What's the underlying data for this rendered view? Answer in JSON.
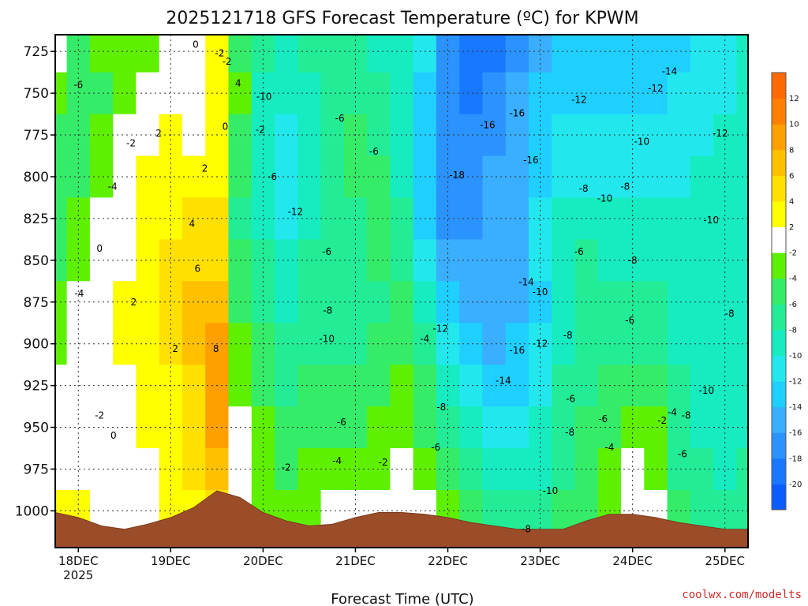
{
  "chart_data": {
    "type": "heatmap",
    "title": "2025121718 GFS Forecast Temperature (ºC) for KPWM",
    "xlabel": "Forecast Time (UTC)",
    "ylabel": "",
    "credit": "coolwx.com/modelts",
    "xlim_days": [
      0,
      7.5
    ],
    "ylim_hpa": [
      1022,
      715
    ],
    "x_ticks": [
      {
        "label": "18DEC",
        "sub": "2025",
        "day": 0.25
      },
      {
        "label": "19DEC",
        "sub": "",
        "day": 1.25
      },
      {
        "label": "20DEC",
        "sub": "",
        "day": 2.25
      },
      {
        "label": "21DEC",
        "sub": "",
        "day": 3.25
      },
      {
        "label": "22DEC",
        "sub": "",
        "day": 4.25
      },
      {
        "label": "23DEC",
        "sub": "",
        "day": 5.25
      },
      {
        "label": "24DEC",
        "sub": "",
        "day": 6.25
      },
      {
        "label": "25DEC",
        "sub": "",
        "day": 7.25
      }
    ],
    "y_ticks": [
      {
        "label": "725",
        "p": 725
      },
      {
        "label": "750",
        "p": 750
      },
      {
        "label": "775",
        "p": 775
      },
      {
        "label": "800",
        "p": 800
      },
      {
        "label": "825",
        "p": 825
      },
      {
        "label": "850",
        "p": 850
      },
      {
        "label": "875",
        "p": 875
      },
      {
        "label": "900",
        "p": 900
      },
      {
        "label": "925",
        "p": 925
      },
      {
        "label": "950",
        "p": 950
      },
      {
        "label": "975",
        "p": 975
      },
      {
        "label": "1000",
        "p": 1000
      }
    ],
    "colorbar": {
      "bounds": [
        -22,
        -20,
        -18,
        -16,
        -14,
        -12,
        -10,
        -8,
        -6,
        -4,
        -2,
        2,
        4,
        6,
        8,
        10,
        12,
        14
      ],
      "colors": [
        "#0a5cff",
        "#1878ff",
        "#2a93ff",
        "#3aaeff",
        "#1fcfff",
        "#22e8ee",
        "#16ecc0",
        "#22ec95",
        "#35ec68",
        "#5ef000",
        "#ffffff",
        "#ffff00",
        "#ffe000",
        "#ffc000",
        "#ffa000",
        "#ff8000",
        "#ff6a00"
      ],
      "tick_labels": [
        "-20",
        "-18",
        "-16",
        "-14",
        "-12",
        "-10",
        "-8",
        "-6",
        "-4",
        "-2",
        "2",
        "4",
        "6",
        "8",
        "10",
        "12"
      ]
    },
    "series": [
      {
        "name": "Temperature",
        "x_day": 0.0,
        "values": [
          -1,
          -3,
          -5,
          -6,
          -5,
          -5,
          -4,
          -4,
          -2,
          -1,
          1,
          2
        ]
      },
      {
        "name": "Temperature",
        "x_day": 0.25,
        "values": [
          -5,
          -6,
          -6,
          -5,
          -4,
          -3,
          -2,
          -1,
          -1,
          0,
          1,
          2
        ]
      },
      {
        "name": "Temperature",
        "x_day": 0.5,
        "values": [
          -4,
          -5,
          -4,
          -3,
          -2,
          -1,
          0,
          0,
          -1,
          -2,
          -2,
          -2
        ]
      },
      {
        "name": "Temperature",
        "x_day": 0.75,
        "values": [
          -4,
          -3,
          -2,
          0,
          0,
          1,
          2,
          2,
          1,
          0,
          0,
          0
        ]
      },
      {
        "name": "Temperature",
        "x_day": 1.0,
        "values": [
          -3,
          -1,
          0,
          2,
          3,
          3,
          3,
          3,
          2,
          2,
          1,
          1
        ]
      },
      {
        "name": "Temperature",
        "x_day": 1.25,
        "values": [
          -1,
          0,
          2,
          2,
          3,
          4,
          4,
          4,
          3,
          3,
          3,
          2
        ]
      },
      {
        "name": "Temperature",
        "x_day": 1.5,
        "values": [
          0,
          0,
          1,
          2,
          4,
          5,
          6,
          6,
          5,
          5,
          4,
          3
        ]
      },
      {
        "name": "Temperature",
        "x_day": 1.75,
        "values": [
          2,
          2,
          2,
          3,
          4,
          5,
          7,
          8,
          8,
          8,
          7,
          5
        ]
      },
      {
        "name": "Temperature",
        "x_day": 2.0,
        "values": [
          -5,
          -4,
          -5,
          -6,
          -7,
          -6,
          -5,
          -4,
          -3,
          -2,
          -1,
          -1
        ]
      },
      {
        "name": "Temperature",
        "x_day": 2.25,
        "values": [
          -8,
          -9,
          -10,
          -10,
          -9,
          -8,
          -7,
          -6,
          -5,
          -4,
          -3,
          -3
        ]
      },
      {
        "name": "Temperature",
        "x_day": 2.5,
        "values": [
          -9,
          -10,
          -11,
          -12,
          -11,
          -10,
          -9,
          -8,
          -7,
          -6,
          -5,
          -3
        ]
      },
      {
        "name": "Temperature",
        "x_day": 2.75,
        "values": [
          -8,
          -9,
          -10,
          -10,
          -9,
          -8,
          -8,
          -7,
          -6,
          -5,
          -4,
          -3
        ]
      },
      {
        "name": "Temperature",
        "x_day": 3.0,
        "values": [
          -7,
          -7,
          -7,
          -8,
          -8,
          -8,
          -8,
          -7,
          -6,
          -5,
          -4,
          -2
        ]
      },
      {
        "name": "Temperature",
        "x_day": 3.25,
        "values": [
          -7,
          -7,
          -6,
          -6,
          -7,
          -7,
          -8,
          -7,
          -6,
          -5,
          -3,
          -2
        ]
      },
      {
        "name": "Temperature",
        "x_day": 3.5,
        "values": [
          -9,
          -8,
          -7,
          -6,
          -5,
          -6,
          -7,
          -6,
          -5,
          -4,
          -3,
          -2
        ]
      },
      {
        "name": "Temperature",
        "x_day": 3.75,
        "values": [
          -10,
          -10,
          -9,
          -9,
          -8,
          -7,
          -6,
          -5,
          -4,
          -3,
          -2,
          -1
        ]
      },
      {
        "name": "Temperature",
        "x_day": 4.0,
        "values": [
          -12,
          -13,
          -14,
          -14,
          -13,
          -12,
          -10,
          -8,
          -6,
          -5,
          -4,
          -2
        ]
      },
      {
        "name": "Temperature",
        "x_day": 4.25,
        "values": [
          -17,
          -17,
          -17,
          -18,
          -17,
          -15,
          -13,
          -12,
          -10,
          -8,
          -6,
          -4
        ]
      },
      {
        "name": "Temperature",
        "x_day": 4.5,
        "values": [
          -20,
          -19,
          -18,
          -17,
          -17,
          -16,
          -15,
          -13,
          -11,
          -9,
          -7,
          -5
        ]
      },
      {
        "name": "Temperature",
        "x_day": 4.75,
        "values": [
          -19,
          -18,
          -17,
          -16,
          -16,
          -15,
          -15,
          -15,
          -13,
          -11,
          -9,
          -7
        ]
      },
      {
        "name": "Temperature",
        "x_day": 5.0,
        "values": [
          -17,
          -16,
          -16,
          -15,
          -15,
          -15,
          -15,
          -14,
          -13,
          -11,
          -10,
          -8
        ]
      },
      {
        "name": "Temperature",
        "x_day": 5.25,
        "values": [
          -15,
          -14,
          -14,
          -13,
          -12,
          -12,
          -13,
          -12,
          -11,
          -10,
          -9,
          -8
        ]
      },
      {
        "name": "Temperature",
        "x_day": 5.5,
        "values": [
          -14,
          -13,
          -12,
          -11,
          -10,
          -9,
          -9,
          -9,
          -8,
          -7,
          -7,
          -6
        ]
      },
      {
        "name": "Temperature",
        "x_day": 5.75,
        "values": [
          -14,
          -13,
          -12,
          -11,
          -9,
          -8,
          -7,
          -7,
          -7,
          -6,
          -5,
          -5
        ]
      },
      {
        "name": "Temperature",
        "x_day": 6.0,
        "values": [
          -13,
          -13,
          -12,
          -11,
          -10,
          -9,
          -8,
          -7,
          -6,
          -5,
          -4,
          -3
        ]
      },
      {
        "name": "Temperature",
        "x_day": 6.25,
        "values": [
          -14,
          -13,
          -12,
          -11,
          -10,
          -9,
          -8,
          -7,
          -5,
          -3,
          -2,
          -2
        ]
      },
      {
        "name": "Temperature",
        "x_day": 6.5,
        "values": [
          -14,
          -13,
          -12,
          -11,
          -10,
          -9,
          -8,
          -7,
          -6,
          -4,
          -3,
          -2
        ]
      },
      {
        "name": "Temperature",
        "x_day": 6.75,
        "values": [
          -13,
          -12,
          -12,
          -11,
          -10,
          -10,
          -9,
          -9,
          -8,
          -8,
          -7,
          -6
        ]
      },
      {
        "name": "Temperature",
        "x_day": 7.0,
        "values": [
          -12,
          -12,
          -11,
          -10,
          -10,
          -10,
          -9,
          -9,
          -9,
          -9,
          -8,
          -7
        ]
      },
      {
        "name": "Temperature",
        "x_day": 7.25,
        "values": [
          -11,
          -11,
          -10,
          -10,
          -10,
          -9,
          -9,
          -9,
          -9,
          -9,
          -9,
          -8
        ]
      },
      {
        "name": "Temperature",
        "x_day": 7.5,
        "values": [
          -10,
          -10,
          -10,
          -9,
          -9,
          -9,
          -9,
          -9,
          -9,
          -9,
          -8,
          -8
        ]
      }
    ],
    "pressure_levels": [
      725,
      750,
      775,
      800,
      825,
      850,
      875,
      900,
      925,
      950,
      975,
      1000
    ],
    "surface_pressure": {
      "x_day": [
        0,
        0.25,
        0.5,
        0.75,
        1.0,
        1.25,
        1.5,
        1.75,
        2.0,
        2.25,
        2.5,
        2.75,
        3.0,
        3.25,
        3.5,
        3.75,
        4.0,
        4.25,
        4.5,
        4.75,
        5.0,
        5.25,
        5.5,
        5.75,
        6.0,
        6.25,
        6.5,
        6.75,
        7.0,
        7.25,
        7.5
      ],
      "hpa": [
        1001,
        1004,
        1009,
        1011,
        1008,
        1004,
        998,
        988,
        992,
        1001,
        1006,
        1009,
        1008,
        1004,
        1001,
        1001,
        1002,
        1004,
        1007,
        1009,
        1011,
        1011,
        1011,
        1006,
        1002,
        1002,
        1004,
        1007,
        1009,
        1011,
        1011
      ]
    },
    "contour_labels": [
      {
        "text": "-6",
        "x_day": 0.25,
        "p": 745
      },
      {
        "text": "0",
        "x_day": 1.52,
        "p": 721
      },
      {
        "text": "-2",
        "x_day": 1.78,
        "p": 726
      },
      {
        "text": "4",
        "x_day": 1.98,
        "p": 744
      },
      {
        "text": "0",
        "x_day": 1.84,
        "p": 770
      },
      {
        "text": "-2",
        "x_day": 1.86,
        "p": 731
      },
      {
        "text": "2",
        "x_day": 1.12,
        "p": 774
      },
      {
        "text": "-2",
        "x_day": 0.82,
        "p": 780
      },
      {
        "text": "2",
        "x_day": 1.62,
        "p": 795
      },
      {
        "text": "-4",
        "x_day": 0.62,
        "p": 806
      },
      {
        "text": "4",
        "x_day": 1.48,
        "p": 828
      },
      {
        "text": "0",
        "x_day": 0.48,
        "p": 843
      },
      {
        "text": "6",
        "x_day": 1.54,
        "p": 855
      },
      {
        "text": "-4",
        "x_day": 0.26,
        "p": 870
      },
      {
        "text": "2",
        "x_day": 0.85,
        "p": 875
      },
      {
        "text": "2",
        "x_day": 1.3,
        "p": 903
      },
      {
        "text": "8",
        "x_day": 1.74,
        "p": 903
      },
      {
        "text": "-2",
        "x_day": 0.48,
        "p": 943
      },
      {
        "text": "0",
        "x_day": 0.63,
        "p": 955
      },
      {
        "text": "-10",
        "x_day": 2.26,
        "p": 752
      },
      {
        "text": "-2",
        "x_day": 2.22,
        "p": 772
      },
      {
        "text": "-6",
        "x_day": 2.35,
        "p": 800
      },
      {
        "text": "-12",
        "x_day": 2.6,
        "p": 821
      },
      {
        "text": "-6",
        "x_day": 3.08,
        "p": 765
      },
      {
        "text": "-6",
        "x_day": 3.45,
        "p": 785
      },
      {
        "text": "-6",
        "x_day": 2.94,
        "p": 845
      },
      {
        "text": "-8",
        "x_day": 2.95,
        "p": 880
      },
      {
        "text": "-10",
        "x_day": 2.94,
        "p": 897
      },
      {
        "text": "-4",
        "x_day": 4.0,
        "p": 897
      },
      {
        "text": "-6",
        "x_day": 3.1,
        "p": 947
      },
      {
        "text": "-4",
        "x_day": 3.05,
        "p": 970
      },
      {
        "text": "-2",
        "x_day": 2.5,
        "p": 974
      },
      {
        "text": "-2",
        "x_day": 3.55,
        "p": 971
      },
      {
        "text": "-16",
        "x_day": 4.68,
        "p": 769
      },
      {
        "text": "-16",
        "x_day": 5.0,
        "p": 762
      },
      {
        "text": "-16",
        "x_day": 5.15,
        "p": 790
      },
      {
        "text": "-18",
        "x_day": 4.35,
        "p": 799
      },
      {
        "text": "-12",
        "x_day": 5.67,
        "p": 754
      },
      {
        "text": "-12",
        "x_day": 6.5,
        "p": 747
      },
      {
        "text": "-14",
        "x_day": 6.65,
        "p": 737
      },
      {
        "text": "-10",
        "x_day": 6.35,
        "p": 779
      },
      {
        "text": "-12",
        "x_day": 7.2,
        "p": 774
      },
      {
        "text": "-8",
        "x_day": 5.72,
        "p": 807
      },
      {
        "text": "-8",
        "x_day": 6.17,
        "p": 806
      },
      {
        "text": "-10",
        "x_day": 5.95,
        "p": 813
      },
      {
        "text": "-10",
        "x_day": 7.1,
        "p": 826
      },
      {
        "text": "-6",
        "x_day": 5.67,
        "p": 845
      },
      {
        "text": "-8",
        "x_day": 6.25,
        "p": 850
      },
      {
        "text": "-14",
        "x_day": 5.1,
        "p": 863
      },
      {
        "text": "-10",
        "x_day": 5.25,
        "p": 869
      },
      {
        "text": "-12",
        "x_day": 4.17,
        "p": 891
      },
      {
        "text": "-6",
        "x_day": 6.22,
        "p": 886
      },
      {
        "text": "-8",
        "x_day": 7.3,
        "p": 882
      },
      {
        "text": "-8",
        "x_day": 5.55,
        "p": 895
      },
      {
        "text": "-16",
        "x_day": 5.0,
        "p": 904
      },
      {
        "text": "-12",
        "x_day": 5.25,
        "p": 900
      },
      {
        "text": "-14",
        "x_day": 4.85,
        "p": 922
      },
      {
        "text": "-8",
        "x_day": 4.18,
        "p": 938
      },
      {
        "text": "-6",
        "x_day": 5.58,
        "p": 933
      },
      {
        "text": "-10",
        "x_day": 7.05,
        "p": 928
      },
      {
        "text": "-6",
        "x_day": 5.93,
        "p": 945
      },
      {
        "text": "-4",
        "x_day": 6.68,
        "p": 941
      },
      {
        "text": "-2",
        "x_day": 6.57,
        "p": 946
      },
      {
        "text": "-8",
        "x_day": 6.83,
        "p": 943
      },
      {
        "text": "-6",
        "x_day": 4.12,
        "p": 962
      },
      {
        "text": "-8",
        "x_day": 5.57,
        "p": 953
      },
      {
        "text": "-4",
        "x_day": 6.0,
        "p": 962
      },
      {
        "text": "-6",
        "x_day": 6.79,
        "p": 966
      },
      {
        "text": "-10",
        "x_day": 5.36,
        "p": 988
      },
      {
        "text": "-8",
        "x_day": 5.1,
        "p": 1011
      }
    ]
  }
}
